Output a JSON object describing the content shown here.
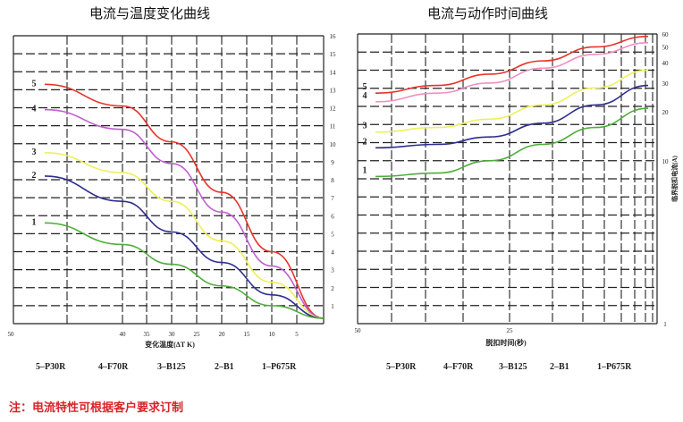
{
  "chart_data": [
    {
      "type": "line",
      "title": "电流与温度变化曲线",
      "xlabel": "变化温度(ΔT K)",
      "ylabel": "",
      "x_ticks": [
        50,
        40,
        35,
        30,
        25,
        20,
        15,
        10,
        5
      ],
      "y_ticks": [
        1,
        2,
        3,
        4,
        5,
        6,
        7,
        8,
        9,
        10,
        11,
        12,
        13,
        14,
        15,
        16
      ],
      "ylim": [
        0,
        16
      ],
      "grid": true,
      "series": [
        {
          "name": "5",
          "label": "5–P30R",
          "color": "#e8332a",
          "points": [
            [
              50,
              13.3
            ],
            [
              40,
              12.1
            ],
            [
              30,
              10.1
            ],
            [
              20,
              7.3
            ],
            [
              10,
              4.0
            ],
            [
              0,
              0.3
            ]
          ]
        },
        {
          "name": "4",
          "label": "4–F70R",
          "color": "#c05fd0",
          "points": [
            [
              50,
              11.9
            ],
            [
              40,
              10.8
            ],
            [
              30,
              8.9
            ],
            [
              20,
              6.2
            ],
            [
              10,
              3.2
            ],
            [
              0,
              0.3
            ]
          ]
        },
        {
          "name": "3",
          "label": "3–B125",
          "color": "#eef05a",
          "points": [
            [
              50,
              9.5
            ],
            [
              40,
              8.4
            ],
            [
              30,
              6.8
            ],
            [
              20,
              4.6
            ],
            [
              10,
              2.3
            ],
            [
              0,
              0.3
            ]
          ]
        },
        {
          "name": "2",
          "label": "2–B1",
          "color": "#2e2d93",
          "points": [
            [
              50,
              8.2
            ],
            [
              40,
              6.8
            ],
            [
              30,
              5.1
            ],
            [
              20,
              3.4
            ],
            [
              10,
              1.6
            ],
            [
              0,
              0.3
            ]
          ]
        },
        {
          "name": "1",
          "label": "1–P675R",
          "color": "#4fae3c",
          "points": [
            [
              50,
              5.6
            ],
            [
              40,
              4.4
            ],
            [
              30,
              3.3
            ],
            [
              20,
              2.1
            ],
            [
              10,
              1.0
            ],
            [
              0,
              0.3
            ]
          ]
        }
      ]
    },
    {
      "type": "line",
      "title": "电流与动作时间曲线",
      "xlabel": "脱扣时间(秒)",
      "ylabel": "临界脱扣电流(A)",
      "x_ticks": [
        50,
        25
      ],
      "y_ticks": [
        1,
        10,
        20,
        30,
        40,
        50,
        60
      ],
      "ylim": [
        1,
        60
      ],
      "grid": true,
      "series": [
        {
          "name": "5",
          "label": "5–P30R",
          "color": "#e8332a",
          "points": [
            [
              50,
              26
            ],
            [
              40,
              29
            ],
            [
              30,
              34
            ],
            [
              20,
              41
            ],
            [
              10,
              50
            ],
            [
              0,
              58
            ]
          ]
        },
        {
          "name": "4",
          "label": "4–F70R",
          "color": "#f08fc0",
          "points": [
            [
              50,
              23
            ],
            [
              40,
              26
            ],
            [
              30,
              30
            ],
            [
              20,
              37
            ],
            [
              10,
              45
            ],
            [
              0,
              53
            ]
          ]
        },
        {
          "name": "3",
          "label": "3–B125",
          "color": "#eef05a",
          "points": [
            [
              50,
              15
            ],
            [
              40,
              16
            ],
            [
              30,
              18
            ],
            [
              20,
              22
            ],
            [
              10,
              28
            ],
            [
              0,
              36
            ]
          ]
        },
        {
          "name": "2",
          "label": "2–B1",
          "color": "#2e2d93",
          "points": [
            [
              50,
              12
            ],
            [
              40,
              12.6
            ],
            [
              30,
              14
            ],
            [
              20,
              17
            ],
            [
              10,
              22
            ],
            [
              0,
              29
            ]
          ]
        },
        {
          "name": "1",
          "label": "1–P675R",
          "color": "#4fae3c",
          "points": [
            [
              50,
              8
            ],
            [
              40,
              8.4
            ],
            [
              30,
              10
            ],
            [
              20,
              12.6
            ],
            [
              10,
              16
            ],
            [
              0,
              21
            ]
          ]
        }
      ]
    }
  ],
  "legend_items": [
    "5–P30R",
    "4–F70R",
    "3–B125",
    "2–B1",
    "1–P675R"
  ],
  "note": "注：电流特性可根据客户要求订制"
}
